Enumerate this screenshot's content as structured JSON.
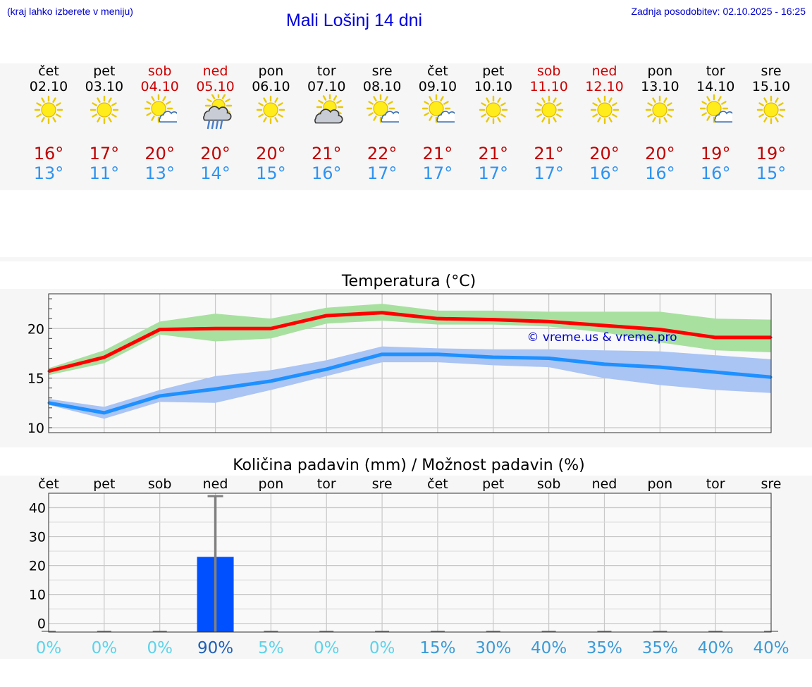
{
  "header": {
    "hint": "(kraj lahko izberete v meniju)",
    "title": "Mali Lošinj 14 dni",
    "updated": "Zadnja posodobitev: 02.10.2025 - 16:25"
  },
  "days": [
    {
      "name": "čet",
      "date": "02.10",
      "weekend": false,
      "icon": "sun-icon",
      "tmax": "16°",
      "tmin": "13°"
    },
    {
      "name": "pet",
      "date": "03.10",
      "weekend": false,
      "icon": "sun-icon",
      "tmax": "17°",
      "tmin": "11°"
    },
    {
      "name": "sob",
      "date": "04.10",
      "weekend": true,
      "icon": "sun-cloud-icon",
      "tmax": "20°",
      "tmin": "13°"
    },
    {
      "name": "ned",
      "date": "05.10",
      "weekend": true,
      "icon": "sun-cloud-rain-icon",
      "tmax": "20°",
      "tmin": "14°"
    },
    {
      "name": "pon",
      "date": "06.10",
      "weekend": false,
      "icon": "sun-icon",
      "tmax": "20°",
      "tmin": "15°"
    },
    {
      "name": "tor",
      "date": "07.10",
      "weekend": false,
      "icon": "cloud-sun-icon",
      "tmax": "21°",
      "tmin": "16°"
    },
    {
      "name": "sre",
      "date": "08.10",
      "weekend": false,
      "icon": "sun-cloud-icon",
      "tmax": "22°",
      "tmin": "17°"
    },
    {
      "name": "čet",
      "date": "09.10",
      "weekend": false,
      "icon": "sun-cloud-icon",
      "tmax": "21°",
      "tmin": "17°"
    },
    {
      "name": "pet",
      "date": "10.10",
      "weekend": false,
      "icon": "sun-icon",
      "tmax": "21°",
      "tmin": "17°"
    },
    {
      "name": "sob",
      "date": "11.10",
      "weekend": true,
      "icon": "sun-icon",
      "tmax": "21°",
      "tmin": "17°"
    },
    {
      "name": "ned",
      "date": "12.10",
      "weekend": true,
      "icon": "sun-icon",
      "tmax": "20°",
      "tmin": "16°"
    },
    {
      "name": "pon",
      "date": "13.10",
      "weekend": false,
      "icon": "sun-icon",
      "tmax": "20°",
      "tmin": "16°"
    },
    {
      "name": "tor",
      "date": "14.10",
      "weekend": false,
      "icon": "sun-cloud-icon",
      "tmax": "19°",
      "tmin": "16°"
    },
    {
      "name": "sre",
      "date": "15.10",
      "weekend": false,
      "icon": "sun-icon",
      "tmax": "19°",
      "tmin": "15°"
    }
  ],
  "colors": {
    "max_line": "#ff0000",
    "max_band": "#a8e0a0",
    "min_line": "#1e90ff",
    "min_band": "#aac4f4",
    "bar": "#0050ff",
    "error": "#808080",
    "weekend": "#cc0000",
    "pct_low": "#5bd3ea",
    "pct_high": "#1e5fb4"
  },
  "chart_data": [
    {
      "type": "line",
      "title": "Temperatura (°C)",
      "watermark": "© vreme.us & vreme.pro",
      "ylim": [
        9.5,
        23.5
      ],
      "yticks": [
        10,
        15,
        20
      ],
      "grid": true,
      "series": [
        {
          "values": [
            15.7,
            17.1,
            19.9,
            20.0,
            20.0,
            21.3,
            21.6,
            21.0,
            20.9,
            20.7,
            20.3,
            19.9,
            19.1,
            19.1
          ],
          "band_low": [
            15.3,
            16.5,
            19.4,
            18.7,
            19.0,
            20.5,
            20.8,
            20.4,
            20.4,
            20.2,
            19.6,
            18.6,
            17.8,
            17.6
          ],
          "band_high": [
            16.0,
            17.8,
            20.7,
            21.5,
            21.0,
            22.1,
            22.5,
            21.8,
            21.8,
            21.7,
            21.7,
            21.7,
            21.0,
            20.9
          ]
        },
        {
          "values": [
            12.5,
            11.5,
            13.2,
            13.9,
            14.7,
            15.9,
            17.4,
            17.4,
            17.1,
            17.0,
            16.4,
            16.1,
            15.6,
            15.1
          ],
          "band_low": [
            12.3,
            10.9,
            12.6,
            12.5,
            13.8,
            15.2,
            16.6,
            16.6,
            16.3,
            16.1,
            15.0,
            14.3,
            13.8,
            13.5
          ],
          "band_high": [
            12.9,
            12.1,
            13.8,
            15.2,
            15.8,
            16.8,
            18.2,
            18.0,
            17.9,
            17.9,
            17.8,
            17.7,
            17.3,
            16.9
          ]
        }
      ]
    },
    {
      "type": "bar",
      "title": "Količina padavin (mm) / Možnost padavin (%)",
      "categories": [
        "čet",
        "pet",
        "sob",
        "ned",
        "pon",
        "tor",
        "sre",
        "čet",
        "pet",
        "sob",
        "ned",
        "pon",
        "tor",
        "sre"
      ],
      "values": [
        0,
        0,
        0,
        23,
        0,
        0,
        0,
        0,
        0,
        0,
        0,
        0,
        0,
        0
      ],
      "error_high": [
        0,
        0,
        0,
        44,
        0,
        0,
        0,
        0,
        0,
        0,
        0,
        0,
        0,
        0
      ],
      "probability": [
        "0%",
        "0%",
        "0%",
        "90%",
        "5%",
        "0%",
        "0%",
        "15%",
        "30%",
        "40%",
        "35%",
        "35%",
        "40%",
        "40%"
      ],
      "probability_values": [
        0,
        0,
        0,
        90,
        5,
        0,
        0,
        15,
        30,
        40,
        35,
        35,
        40,
        40
      ],
      "ylim": [
        -3,
        45
      ],
      "yticks": [
        0,
        10,
        20,
        30,
        40
      ],
      "grid": true
    }
  ]
}
